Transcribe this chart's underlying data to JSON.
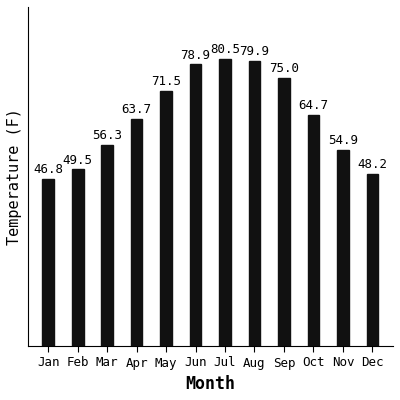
{
  "months": [
    "Jan",
    "Feb",
    "Mar",
    "Apr",
    "May",
    "Jun",
    "Jul",
    "Aug",
    "Sep",
    "Oct",
    "Nov",
    "Dec"
  ],
  "temperatures": [
    46.8,
    49.5,
    56.3,
    63.7,
    71.5,
    78.9,
    80.5,
    79.9,
    75.0,
    64.7,
    54.9,
    48.2
  ],
  "bar_color": "#111111",
  "xlabel": "Month",
  "ylabel": "Temperature (F)",
  "ylim": [
    0,
    95
  ],
  "bar_width": 0.4,
  "label_fontsize": 12,
  "tick_fontsize": 9,
  "bar_label_fontsize": 9,
  "ylabel_fontsize": 11,
  "background_color": "#ffffff"
}
